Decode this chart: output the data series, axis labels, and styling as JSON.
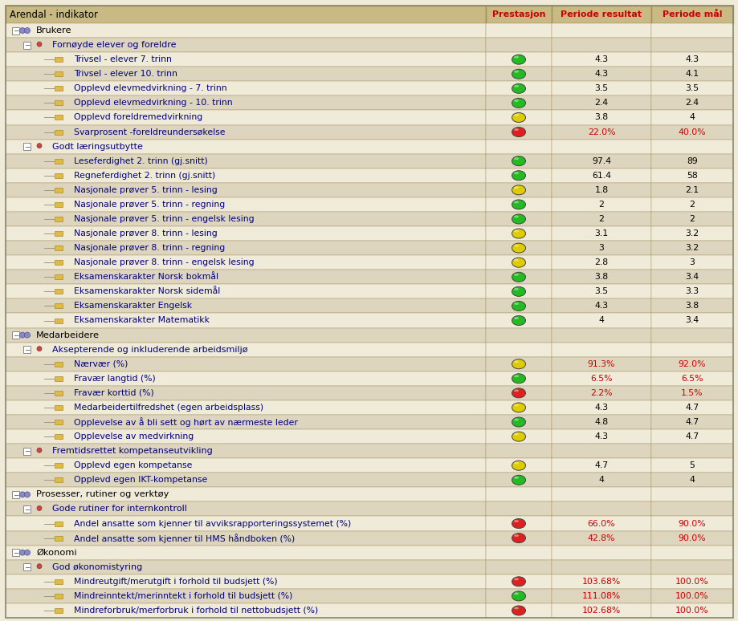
{
  "title": "Arendal - indikator",
  "col_headers": [
    "Prestasjon",
    "Periode resultat",
    "Periode mål"
  ],
  "col_header_color": "#cc0000",
  "header_bg": "#c8ba82",
  "row_bg_odd": "#f0ead8",
  "row_bg_even": "#ddd5bd",
  "border_color": "#a09060",
  "fig_bg": "#f0ead8",
  "rows": [
    {
      "level": 1,
      "label": "Brukere",
      "type": "section1",
      "prestasjon": null,
      "resultat": "",
      "maal": ""
    },
    {
      "level": 2,
      "label": "Fornøyde elever og foreldre",
      "type": "section2",
      "prestasjon": null,
      "resultat": "",
      "maal": ""
    },
    {
      "level": 3,
      "label": "Trivsel - elever 7. trinn",
      "type": "data",
      "prestasjon": "green",
      "resultat": "4.3",
      "maal": "4.3"
    },
    {
      "level": 3,
      "label": "Trivsel - elever 10. trinn",
      "type": "data",
      "prestasjon": "green",
      "resultat": "4.3",
      "maal": "4.1"
    },
    {
      "level": 3,
      "label": "Opplevd elevmedvirkning - 7. trinn",
      "type": "data",
      "prestasjon": "green",
      "resultat": "3.5",
      "maal": "3.5"
    },
    {
      "level": 3,
      "label": "Opplevd elevmedvirkning - 10. trinn",
      "type": "data",
      "prestasjon": "green",
      "resultat": "2.4",
      "maal": "2.4"
    },
    {
      "level": 3,
      "label": "Opplevd foreldremedvirkning",
      "type": "data",
      "prestasjon": "yellow",
      "resultat": "3.8",
      "maal": "4"
    },
    {
      "level": 3,
      "label": "Svarprosent -foreldreundersøkelse",
      "type": "data",
      "prestasjon": "red",
      "resultat": "22.0%",
      "maal": "40.0%"
    },
    {
      "level": 2,
      "label": "Godt læringsutbytte",
      "type": "section2",
      "prestasjon": null,
      "resultat": "",
      "maal": ""
    },
    {
      "level": 3,
      "label": "Leseferdighet 2. trinn (gj.snitt)",
      "type": "data",
      "prestasjon": "green",
      "resultat": "97.4",
      "maal": "89"
    },
    {
      "level": 3,
      "label": "Regneferdighet 2. trinn (gj.snitt)",
      "type": "data",
      "prestasjon": "green",
      "resultat": "61.4",
      "maal": "58"
    },
    {
      "level": 3,
      "label": "Nasjonale prøver 5. trinn - lesing",
      "type": "data",
      "prestasjon": "yellow",
      "resultat": "1.8",
      "maal": "2.1"
    },
    {
      "level": 3,
      "label": "Nasjonale prøver 5. trinn - regning",
      "type": "data",
      "prestasjon": "green",
      "resultat": "2",
      "maal": "2"
    },
    {
      "level": 3,
      "label": "Nasjonale prøver 5. trinn - engelsk lesing",
      "type": "data",
      "prestasjon": "green",
      "resultat": "2",
      "maal": "2"
    },
    {
      "level": 3,
      "label": "Nasjonale prøver 8. trinn - lesing",
      "type": "data",
      "prestasjon": "yellow",
      "resultat": "3.1",
      "maal": "3.2"
    },
    {
      "level": 3,
      "label": "Nasjonale prøver 8. trinn - regning",
      "type": "data",
      "prestasjon": "yellow",
      "resultat": "3",
      "maal": "3.2"
    },
    {
      "level": 3,
      "label": "Nasjonale prøver 8. trinn - engelsk lesing",
      "type": "data",
      "prestasjon": "yellow",
      "resultat": "2.8",
      "maal": "3"
    },
    {
      "level": 3,
      "label": "Eksamenskarakter Norsk bokmål",
      "type": "data",
      "prestasjon": "green",
      "resultat": "3.8",
      "maal": "3.4"
    },
    {
      "level": 3,
      "label": "Eksamenskarakter Norsk sidemål",
      "type": "data",
      "prestasjon": "green",
      "resultat": "3.5",
      "maal": "3.3"
    },
    {
      "level": 3,
      "label": "Eksamenskarakter Engelsk",
      "type": "data",
      "prestasjon": "green",
      "resultat": "4.3",
      "maal": "3.8"
    },
    {
      "level": 3,
      "label": "Eksamenskarakter Matematikk",
      "type": "data",
      "prestasjon": "green",
      "resultat": "4",
      "maal": "3.4"
    },
    {
      "level": 1,
      "label": "Medarbeidere",
      "type": "section1",
      "prestasjon": null,
      "resultat": "",
      "maal": ""
    },
    {
      "level": 2,
      "label": "Aksepterende og inkluderende arbeidsmiljø",
      "type": "section2",
      "prestasjon": null,
      "resultat": "",
      "maal": ""
    },
    {
      "level": 3,
      "label": "Nærvær (%)",
      "type": "data",
      "prestasjon": "yellow",
      "resultat": "91.3%",
      "maal": "92.0%"
    },
    {
      "level": 3,
      "label": "Fravær langtid (%)",
      "type": "data",
      "prestasjon": "green",
      "resultat": "6.5%",
      "maal": "6.5%"
    },
    {
      "level": 3,
      "label": "Fravær korttid (%)",
      "type": "data",
      "prestasjon": "red",
      "resultat": "2.2%",
      "maal": "1.5%"
    },
    {
      "level": 3,
      "label": "Medarbeidertilfredshet (egen arbeidsplass)",
      "type": "data",
      "prestasjon": "yellow",
      "resultat": "4.3",
      "maal": "4.7"
    },
    {
      "level": 3,
      "label": "Opplevelse av å bli sett og hørt av nærmeste leder",
      "type": "data",
      "prestasjon": "green",
      "resultat": "4.8",
      "maal": "4.7"
    },
    {
      "level": 3,
      "label": "Opplevelse av medvirkning",
      "type": "data",
      "prestasjon": "yellow",
      "resultat": "4.3",
      "maal": "4.7"
    },
    {
      "level": 2,
      "label": "Fremtidsrettet kompetanseutvikling",
      "type": "section2",
      "prestasjon": null,
      "resultat": "",
      "maal": ""
    },
    {
      "level": 3,
      "label": "Opplevd egen kompetanse",
      "type": "data",
      "prestasjon": "yellow",
      "resultat": "4.7",
      "maal": "5"
    },
    {
      "level": 3,
      "label": "Opplevd egen IKT-kompetanse",
      "type": "data",
      "prestasjon": "green",
      "resultat": "4",
      "maal": "4"
    },
    {
      "level": 1,
      "label": "Prosesser, rutiner og verktøy",
      "type": "section1",
      "prestasjon": null,
      "resultat": "",
      "maal": ""
    },
    {
      "level": 2,
      "label": "Gode rutiner for internkontroll",
      "type": "section2",
      "prestasjon": null,
      "resultat": "",
      "maal": ""
    },
    {
      "level": 3,
      "label": "Andel ansatte som kjenner til avviksrapporteringssystemet (%)",
      "type": "data",
      "prestasjon": "red",
      "resultat": "66.0%",
      "maal": "90.0%"
    },
    {
      "level": 3,
      "label": "Andel ansatte som kjenner til HMS håndboken (%)",
      "type": "data",
      "prestasjon": "red",
      "resultat": "42.8%",
      "maal": "90.0%"
    },
    {
      "level": 1,
      "label": "Økonomi",
      "type": "section1",
      "prestasjon": null,
      "resultat": "",
      "maal": ""
    },
    {
      "level": 2,
      "label": "God økonomistyring",
      "type": "section2",
      "prestasjon": null,
      "resultat": "",
      "maal": ""
    },
    {
      "level": 3,
      "label": "Mindreutgift/merutgift i forhold til budsjett (%)",
      "type": "data",
      "prestasjon": "red",
      "resultat": "103.68%",
      "maal": "100.0%"
    },
    {
      "level": 3,
      "label": "Mindreinntekt/merinntekt i forhold til budsjett (%)",
      "type": "data",
      "prestasjon": "green",
      "resultat": "111.08%",
      "maal": "100.0%"
    },
    {
      "level": 3,
      "label": "Mindreforbruk/merforbruk i forhold til nettobudsjett (%)",
      "type": "data",
      "prestasjon": "red",
      "resultat": "102.68%",
      "maal": "100.0%"
    }
  ]
}
